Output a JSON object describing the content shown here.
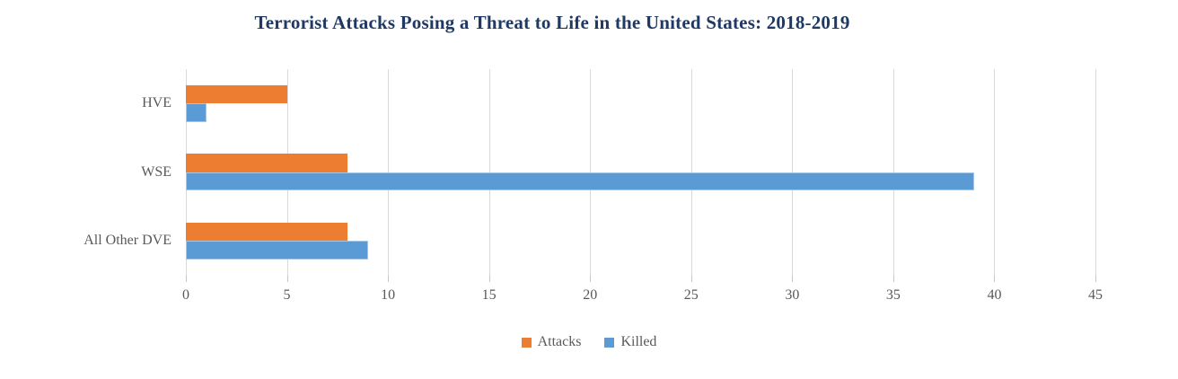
{
  "chart_data": {
    "type": "bar",
    "orientation": "horizontal",
    "title": "Terrorist Attacks Posing a Threat to Life in the United States: 2018-2019",
    "categories": [
      "HVE",
      "WSE",
      "All Other DVE"
    ],
    "series": [
      {
        "name": "Attacks",
        "color": "#ED7D31",
        "border_color": "#ED7D31",
        "values": [
          5,
          8,
          8
        ]
      },
      {
        "name": "Killed",
        "color": "#5B9BD5",
        "border_color": "#A8C6E5",
        "values": [
          1,
          39,
          9
        ]
      }
    ],
    "xlabel": "",
    "ylabel": "",
    "xlim": [
      0,
      45
    ],
    "x_ticks": [
      0,
      5,
      10,
      15,
      20,
      25,
      30,
      35,
      40,
      45
    ],
    "grid": true,
    "legend_position": "bottom",
    "colors": {
      "title": "#1F3864",
      "axis_text": "#595959",
      "gridline": "#D9D9D9",
      "tick_mark": "#C6C6C6",
      "background": "#FFFFFF"
    }
  }
}
